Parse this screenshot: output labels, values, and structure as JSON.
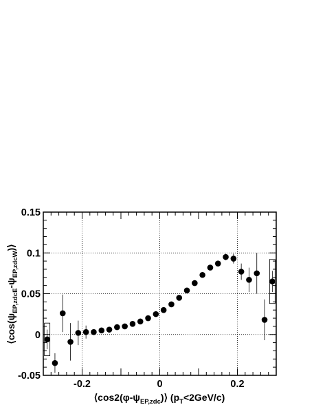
{
  "chart_data": {
    "type": "scatter",
    "xlabel": {
      "pre": "⟨cos2(φ-ψ",
      "sub": "EP,zdc",
      "mid": ")⟩ (p",
      "sub2": "T",
      "post": "<2GeV/c)"
    },
    "ylabel": {
      "pre": "⟨cos(ψ",
      "sub": "EP,zdcE",
      "mid": "-ψ",
      "sub2": "EP,zdcW",
      "post": ")⟩"
    },
    "xlim": [
      -0.3,
      0.3
    ],
    "ylim": [
      -0.05,
      0.15
    ],
    "x_ticks": [
      {
        "value": -0.2,
        "label": "-0.2"
      },
      {
        "value": 0,
        "label": "0"
      },
      {
        "value": 0.2,
        "label": "0.2"
      }
    ],
    "y_ticks": [
      {
        "value": -0.05,
        "label": "-0.05"
      },
      {
        "value": 0,
        "label": "0"
      },
      {
        "value": 0.05,
        "label": "0.05"
      },
      {
        "value": 0.1,
        "label": "0.1"
      },
      {
        "value": 0.15,
        "label": "0.15"
      }
    ],
    "grid": true,
    "marker_color": "#000000",
    "points": [
      {
        "x": -0.29,
        "y": -0.006,
        "err": 0.012
      },
      {
        "x": -0.27,
        "y": -0.035,
        "err": 0.012
      },
      {
        "x": -0.25,
        "y": 0.026,
        "err": 0.023
      },
      {
        "x": -0.23,
        "y": -0.009,
        "err": 0.023
      },
      {
        "x": -0.21,
        "y": 0.002,
        "err": 0.015
      },
      {
        "x": -0.19,
        "y": 0.003,
        "err": 0.008
      },
      {
        "x": -0.17,
        "y": 0.003,
        "err": 0.003
      },
      {
        "x": -0.15,
        "y": 0.005,
        "err": 0.002
      },
      {
        "x": -0.13,
        "y": 0.006,
        "err": 0.002
      },
      {
        "x": -0.11,
        "y": 0.009,
        "err": 0.001
      },
      {
        "x": -0.09,
        "y": 0.01,
        "err": 0.001
      },
      {
        "x": -0.07,
        "y": 0.013,
        "err": 0.001
      },
      {
        "x": -0.05,
        "y": 0.016,
        "err": 0.001
      },
      {
        "x": -0.03,
        "y": 0.02,
        "err": 0.001
      },
      {
        "x": -0.01,
        "y": 0.025,
        "err": 0.001
      },
      {
        "x": 0.01,
        "y": 0.03,
        "err": 0.001
      },
      {
        "x": 0.03,
        "y": 0.037,
        "err": 0.001
      },
      {
        "x": 0.05,
        "y": 0.045,
        "err": 0.001
      },
      {
        "x": 0.07,
        "y": 0.054,
        "err": 0.001
      },
      {
        "x": 0.09,
        "y": 0.063,
        "err": 0.001
      },
      {
        "x": 0.11,
        "y": 0.073,
        "err": 0.001
      },
      {
        "x": 0.13,
        "y": 0.082,
        "err": 0.002
      },
      {
        "x": 0.15,
        "y": 0.087,
        "err": 0.003
      },
      {
        "x": 0.17,
        "y": 0.095,
        "err": 0.004
      },
      {
        "x": 0.19,
        "y": 0.093,
        "err": 0.006
      },
      {
        "x": 0.21,
        "y": 0.077,
        "err": 0.01
      },
      {
        "x": 0.23,
        "y": 0.067,
        "err": 0.015
      },
      {
        "x": 0.25,
        "y": 0.075,
        "err": 0.025
      },
      {
        "x": 0.27,
        "y": 0.018,
        "err": 0.025
      },
      {
        "x": 0.29,
        "y": 0.065,
        "err": 0.013
      }
    ],
    "sys_boxes": [
      {
        "x": -0.29,
        "y": -0.006,
        "half_height": 0.02
      },
      {
        "x": 0.29,
        "y": 0.065,
        "half_height": 0.027
      }
    ]
  }
}
